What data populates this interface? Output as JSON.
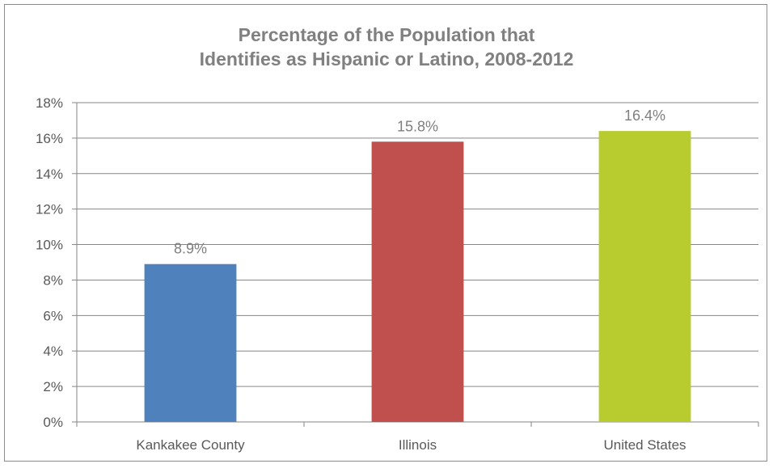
{
  "chart_data": {
    "type": "bar",
    "title_lines": [
      "Percentage of the Population that",
      "Identifies as Hispanic or Latino, 2008-2012"
    ],
    "categories": [
      "Kankakee County",
      "Illinois",
      "United States"
    ],
    "values": [
      8.9,
      15.8,
      16.4
    ],
    "data_labels": [
      "8.9%",
      "15.8%",
      "16.4%"
    ],
    "bar_colors": [
      "#4f81bd",
      "#c0504d",
      "#b8cb2f"
    ],
    "ylim": [
      0,
      18
    ],
    "yticks": [
      0,
      2,
      4,
      6,
      8,
      10,
      12,
      14,
      16,
      18
    ],
    "ytick_labels": [
      "0%",
      "2%",
      "4%",
      "6%",
      "8%",
      "10%",
      "12%",
      "14%",
      "16%",
      "18%"
    ],
    "grid": true,
    "legend": false
  }
}
